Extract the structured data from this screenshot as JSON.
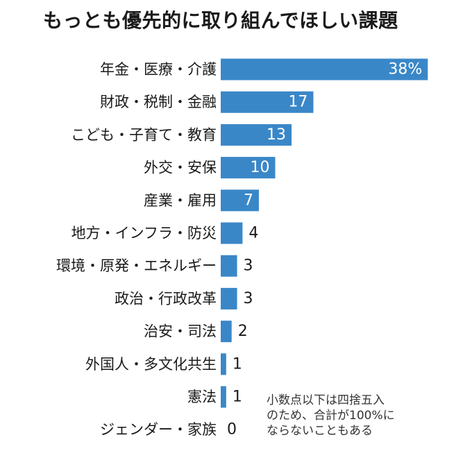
{
  "chart_data": {
    "type": "bar",
    "orientation": "horizontal",
    "title": "もっとも優先的に取り組んでほしい課題",
    "categories": [
      "年金・医療・介護",
      "財政・税制・金融",
      "こども・子育て・教育",
      "外交・安保",
      "産業・雇用",
      "地方・インフラ・防災",
      "環境・原発・エネルギー",
      "政治・行政改革",
      "治安・司法",
      "外国人・多文化共生",
      "憲法",
      "ジェンダー・家族"
    ],
    "values": [
      38,
      17,
      13,
      10,
      7,
      4,
      3,
      3,
      2,
      1,
      1,
      0
    ],
    "value_labels": [
      "38%",
      "17",
      "13",
      "10",
      "7",
      "4",
      "3",
      "3",
      "2",
      "1",
      "1",
      "0"
    ],
    "xlim": [
      0,
      40
    ],
    "grid": false,
    "bar_color": "#3a87c8",
    "note": "小数点以下は四捨五入\nのため、合計が100%に\nならないこともある"
  }
}
